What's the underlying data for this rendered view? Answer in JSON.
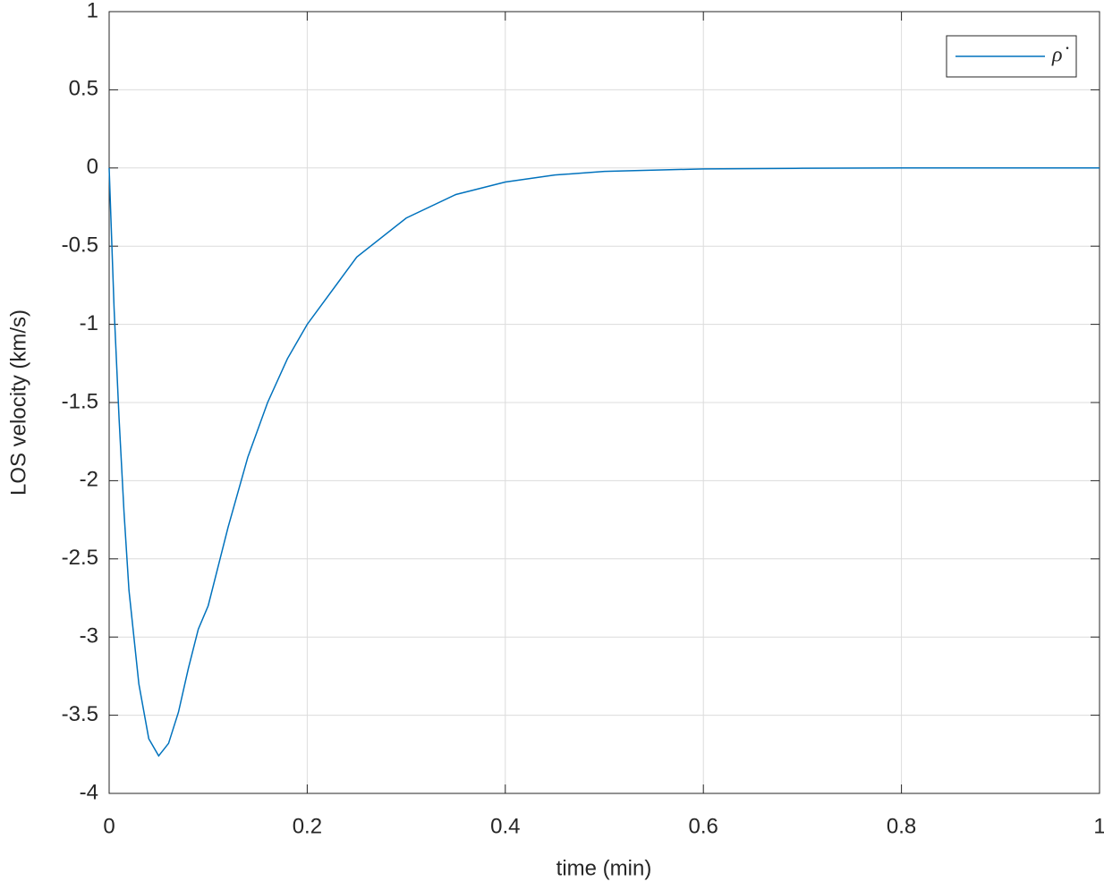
{
  "chart_data": {
    "type": "line",
    "xlabel": "time (min)",
    "ylabel": "LOS velocity (km/s)",
    "x": [
      0,
      0.005,
      0.01,
      0.015,
      0.02,
      0.03,
      0.04,
      0.05,
      0.06,
      0.07,
      0.08,
      0.09,
      0.1,
      0.12,
      0.14,
      0.16,
      0.18,
      0.2,
      0.25,
      0.3,
      0.35,
      0.4,
      0.45,
      0.5,
      0.6,
      0.7,
      0.8,
      1
    ],
    "series": [
      {
        "name": "ρ̇",
        "color": "#0072bd",
        "values": [
          0,
          -0.9,
          -1.6,
          -2.2,
          -2.7,
          -3.3,
          -3.65,
          -3.76,
          -3.68,
          -3.48,
          -3.2,
          -2.95,
          -2.8,
          -2.3,
          -1.85,
          -1.5,
          -1.22,
          -1.0,
          -0.57,
          -0.32,
          -0.17,
          -0.09,
          -0.045,
          -0.022,
          -0.006,
          -0.002,
          0,
          0
        ]
      }
    ],
    "xlim": [
      0,
      1
    ],
    "ylim": [
      -4,
      1
    ],
    "xticks": [
      0,
      0.2,
      0.4,
      0.6,
      0.8,
      1
    ],
    "yticks": [
      -4,
      -3.5,
      -3,
      -2.5,
      -2,
      -1.5,
      -1,
      -0.5,
      0,
      0.5,
      1
    ],
    "grid": true,
    "legend": "northeast"
  }
}
